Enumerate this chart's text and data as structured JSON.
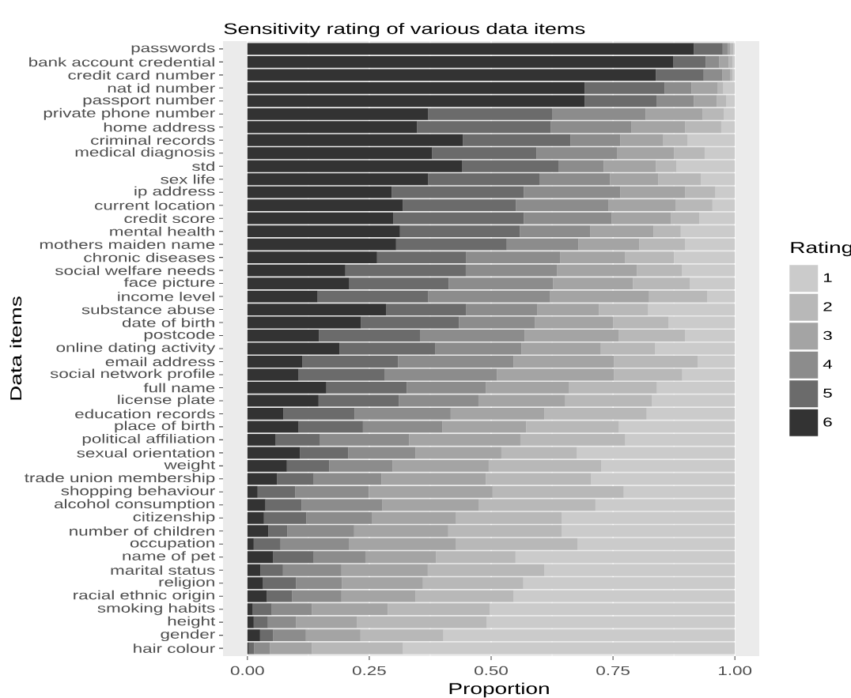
{
  "chart_data": {
    "type": "bar",
    "orientation": "horizontal",
    "stacked": true,
    "title": "Sensitivity rating of various data items",
    "xlabel": "Proportion",
    "ylabel": "Data items",
    "legend_title": "Rating",
    "legend": "right",
    "grid": "x",
    "categories": [
      "passwords",
      "bank account credential",
      "credit card number",
      "nat id number",
      "passport number",
      "private phone number",
      "home address",
      "criminal records",
      "medical diagnosis",
      "std",
      "sex life",
      "ip address",
      "current location",
      "credit score",
      "mental health",
      "mothers maiden name",
      "chronic diseases",
      "social welfare needs",
      "face picture",
      "income level",
      "substance abuse",
      "date of birth",
      "postcode",
      "online dating activity",
      "email address",
      "social network profile",
      "full name",
      "license plate",
      "education records",
      "place of birth",
      "political affiliation",
      "sexual orientation",
      "weight",
      "trade union membership",
      "shopping behaviour",
      "alcohol consumption",
      "citizenship",
      "number of children",
      "occupation",
      "name of pet",
      "marital status",
      "religion",
      "racial ethnic origin",
      "smoking habits",
      "height",
      "gender",
      "hair colour"
    ],
    "xlim": [
      -0.05,
      1.05
    ],
    "xticks": [
      {
        "value": 0,
        "label": "0.00"
      },
      {
        "value": 0.25,
        "label": "0.25"
      },
      {
        "value": 0.5,
        "label": "0.50"
      },
      {
        "value": 0.75,
        "label": "0.75"
      },
      {
        "value": 1,
        "label": "1.00"
      }
    ],
    "series": [
      {
        "name": "6",
        "color": "#333333",
        "values": [
          0.916,
          0.874,
          0.838,
          0.692,
          0.692,
          0.371,
          0.348,
          0.442,
          0.379,
          0.44,
          0.371,
          0.296,
          0.319,
          0.299,
          0.313,
          0.305,
          0.266,
          0.201,
          0.209,
          0.144,
          0.285,
          0.233,
          0.147,
          0.189,
          0.113,
          0.105,
          0.162,
          0.146,
          0.074,
          0.105,
          0.058,
          0.108,
          0.081,
          0.061,
          0.021,
          0.037,
          0.034,
          0.043,
          0.013,
          0.053,
          0.027,
          0.032,
          0.04,
          0.011,
          0.013,
          0.026,
          0.003
        ]
      },
      {
        "name": "5",
        "color": "#6b6b6b",
        "values": [
          0.059,
          0.066,
          0.098,
          0.164,
          0.148,
          0.254,
          0.274,
          0.221,
          0.214,
          0.198,
          0.228,
          0.271,
          0.232,
          0.268,
          0.246,
          0.227,
          0.183,
          0.247,
          0.204,
          0.227,
          0.164,
          0.201,
          0.208,
          0.196,
          0.196,
          0.177,
          0.165,
          0.165,
          0.146,
          0.132,
          0.091,
          0.099,
          0.087,
          0.075,
          0.077,
          0.074,
          0.087,
          0.039,
          0.055,
          0.083,
          0.046,
          0.068,
          0.052,
          0.039,
          0.029,
          0.027,
          0.011
        ]
      },
      {
        "name": "4",
        "color": "#8c8c8c",
        "values": [
          0.01,
          0.028,
          0.038,
          0.055,
          0.076,
          0.192,
          0.166,
          0.102,
          0.165,
          0.093,
          0.145,
          0.198,
          0.19,
          0.18,
          0.144,
          0.147,
          0.193,
          0.187,
          0.214,
          0.25,
          0.146,
          0.156,
          0.214,
          0.177,
          0.237,
          0.23,
          0.162,
          0.163,
          0.197,
          0.163,
          0.183,
          0.138,
          0.13,
          0.139,
          0.151,
          0.166,
          0.134,
          0.137,
          0.14,
          0.106,
          0.12,
          0.094,
          0.101,
          0.082,
          0.058,
          0.067,
          0.032
        ]
      },
      {
        "name": "3",
        "color": "#a4a4a4",
        "values": [
          0.005,
          0.019,
          0.017,
          0.053,
          0.047,
          0.117,
          0.11,
          0.088,
          0.117,
          0.107,
          0.099,
          0.133,
          0.137,
          0.122,
          0.13,
          0.125,
          0.133,
          0.164,
          0.164,
          0.203,
          0.126,
          0.16,
          0.193,
          0.163,
          0.206,
          0.24,
          0.171,
          0.178,
          0.192,
          0.172,
          0.228,
          0.176,
          0.197,
          0.214,
          0.254,
          0.198,
          0.173,
          0.193,
          0.22,
          0.145,
          0.177,
          0.166,
          0.152,
          0.156,
          0.125,
          0.112,
          0.086
        ]
      },
      {
        "name": "2",
        "color": "#b8b8b8",
        "values": [
          0.007,
          0.008,
          0.004,
          0.012,
          0.019,
          0.043,
          0.074,
          0.05,
          0.063,
          0.042,
          0.087,
          0.062,
          0.076,
          0.058,
          0.056,
          0.094,
          0.1,
          0.092,
          0.117,
          0.119,
          0.101,
          0.114,
          0.136,
          0.111,
          0.172,
          0.14,
          0.18,
          0.178,
          0.21,
          0.19,
          0.215,
          0.155,
          0.231,
          0.216,
          0.269,
          0.239,
          0.217,
          0.233,
          0.249,
          0.163,
          0.239,
          0.206,
          0.201,
          0.209,
          0.266,
          0.17,
          0.187
        ]
      },
      {
        "name": "1",
        "color": "#cbcbcb",
        "values": [
          0.003,
          0.005,
          0.005,
          0.024,
          0.018,
          0.023,
          0.028,
          0.097,
          0.062,
          0.12,
          0.07,
          0.04,
          0.046,
          0.073,
          0.111,
          0.102,
          0.125,
          0.109,
          0.092,
          0.057,
          0.178,
          0.136,
          0.102,
          0.164,
          0.076,
          0.108,
          0.16,
          0.17,
          0.181,
          0.238,
          0.225,
          0.324,
          0.274,
          0.295,
          0.228,
          0.286,
          0.355,
          0.355,
          0.323,
          0.45,
          0.391,
          0.434,
          0.454,
          0.503,
          0.509,
          0.598,
          0.681
        ]
      }
    ]
  }
}
